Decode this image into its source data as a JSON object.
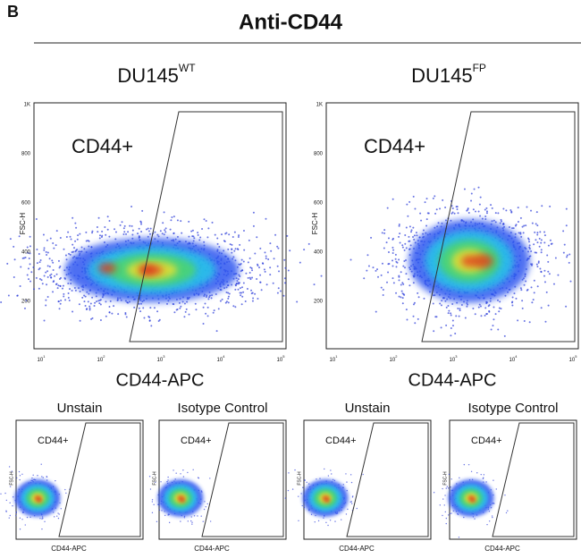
{
  "panel_label": "B",
  "title": "Anti-CD44",
  "main_plots": [
    {
      "name": "DU145",
      "superscript": "WT",
      "gate_label": "CD44+",
      "y_axis_label": "FSC-H",
      "x_axis_label": "CD44-APC"
    },
    {
      "name": "DU145",
      "superscript": "FP",
      "gate_label": "CD44+",
      "y_axis_label": "FSC-H",
      "x_axis_label": "CD44-APC"
    }
  ],
  "y_ticks": [
    "1K",
    "800",
    "600",
    "400",
    "200"
  ],
  "x_ticks": [
    {
      "base": "10",
      "exponent": "1"
    },
    {
      "base": "10",
      "exponent": "2"
    },
    {
      "base": "10",
      "exponent": "3"
    },
    {
      "base": "10",
      "exponent": "4"
    },
    {
      "base": "10",
      "exponent": "5"
    }
  ],
  "small_plots": [
    {
      "title": "Unstain",
      "gate_label": "CD44+",
      "y_axis_label": "FSC-H",
      "x_axis_label": "CD44-APC"
    },
    {
      "title": "Isotype Control",
      "gate_label": "CD44+",
      "y_axis_label": "FSC-H",
      "x_axis_label": "CD44-APC"
    },
    {
      "title": "Unstain",
      "gate_label": "CD44+",
      "y_axis_label": "FSC-H",
      "x_axis_label": "CD44-APC"
    },
    {
      "title": "Isotype Control",
      "gate_label": "CD44+",
      "y_axis_label": "FSC-H",
      "x_axis_label": "CD44-APC"
    }
  ]
}
